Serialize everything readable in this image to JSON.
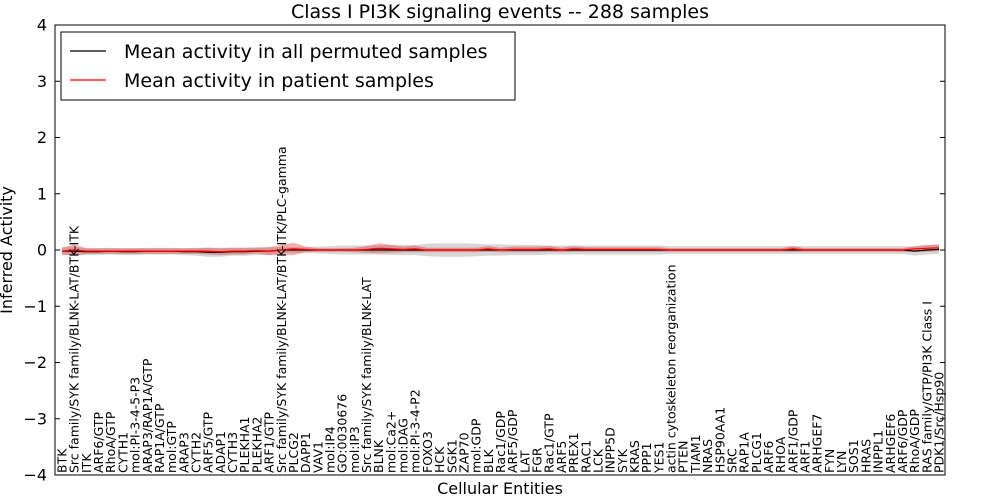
{
  "chart_data": {
    "type": "line",
    "title": "Class I PI3K signaling events -- 288 samples",
    "xlabel": "Cellular Entities",
    "ylabel": "Inferred Activity",
    "ylim": [
      -4,
      4
    ],
    "yticks": [
      {
        "value": 4,
        "label": "4"
      },
      {
        "value": 3,
        "label": "3"
      },
      {
        "value": 2,
        "label": "2"
      },
      {
        "value": 1,
        "label": "1"
      },
      {
        "value": 0,
        "label": "0"
      },
      {
        "value": -1,
        "label": "−1"
      },
      {
        "value": -2,
        "label": "−2"
      },
      {
        "value": -3,
        "label": "−3"
      },
      {
        "value": -4,
        "label": "−4"
      }
    ],
    "legend": {
      "position": "top-left",
      "entries": [
        {
          "label": "Mean activity in all permuted samples",
          "color": "#000000"
        },
        {
          "label": "Mean activity in patient samples",
          "color": "#ff0000"
        }
      ]
    },
    "categories": [
      "BTK",
      "Src family/SYK family/BLNK-LAT/BTK-ITK",
      "ITK",
      "ARF6/GTP",
      "RhoA/GTP",
      "CYTH1",
      "mol:PI-3-4-5-P3",
      "ARAP3/RAP1A/GTP",
      "RAP1A/GTP",
      "mol:GTP",
      "ARAP3",
      "CYTH2",
      "ARF5/GTP",
      "ADAP1",
      "CYTH3",
      "PLEKHA1",
      "PLEKHA2",
      "ARF1/GTP",
      "Src family/SYK family/BLNK-LAT/BTK-ITK/PLC-gamma",
      "PLCG2",
      "DAPP1",
      "VAV1",
      "mol:IP4",
      "GO:0030676",
      "mol:IP3",
      "Src family/SYK family/BLNK-LAT",
      "BLNK",
      "mol:Ca2+",
      "mol:DAG",
      "mol:PI-3-4-P2",
      "FOXO3",
      "HCK",
      "SGK1",
      "ZAP70",
      "mol:GDP",
      "BLK",
      "Rac1/GDP",
      "ARF5/GDP",
      "LAT",
      "FGR",
      "Rac1/GTP",
      "ARF5",
      "PREX1",
      "RAC1",
      "LCK",
      "INPP5D",
      "SYK",
      "KRAS",
      "PPP1",
      "YES1",
      "actin cytoskeleton reorganization",
      "PTEN",
      "TIAM1",
      "NRAS",
      "HSP90AA1",
      "SRC",
      "RAP1A",
      "PLCG1",
      "ARF6",
      "RHOA",
      "ARF1/GDP",
      "ARF1",
      "ARHGEF7",
      "FYN",
      "LYN",
      "SOS1",
      "HRAS",
      "INPPL1",
      "ARHGEF6",
      "ARF6/GDP",
      "RhoA/GDP",
      "RAS family/GTP/PI3K Class I",
      "PDK1/Src/Hsp90"
    ],
    "series": [
      {
        "name": "Mean activity in all permuted samples",
        "color": "#000000",
        "values": [
          -0.02,
          -0.02,
          -0.03,
          -0.03,
          -0.02,
          -0.03,
          -0.03,
          -0.02,
          -0.02,
          -0.02,
          -0.03,
          -0.03,
          -0.04,
          -0.04,
          -0.03,
          -0.03,
          -0.02,
          -0.02,
          0.0,
          0.0,
          0.0,
          0.0,
          0.0,
          0.0,
          0.0,
          0.0,
          0.0,
          0.0,
          0.0,
          0.0,
          0.0,
          0.0,
          0.0,
          0.0,
          0.0,
          0.0,
          0.0,
          0.0,
          0.0,
          0.0,
          0.0,
          0.0,
          0.0,
          0.0,
          0.0,
          0.0,
          0.0,
          0.0,
          0.0,
          0.0,
          0.0,
          0.0,
          0.0,
          0.0,
          0.0,
          0.0,
          0.0,
          0.0,
          0.0,
          0.0,
          0.0,
          0.0,
          0.0,
          0.0,
          0.0,
          0.0,
          0.0,
          0.0,
          0.0,
          0.0,
          -0.02,
          0.0,
          0.01
        ],
        "band": [
          0.07,
          0.07,
          0.06,
          0.06,
          0.06,
          0.06,
          0.06,
          0.06,
          0.06,
          0.06,
          0.06,
          0.07,
          0.08,
          0.08,
          0.07,
          0.07,
          0.07,
          0.07,
          0.05,
          0.05,
          0.05,
          0.06,
          0.07,
          0.08,
          0.08,
          0.08,
          0.08,
          0.09,
          0.09,
          0.09,
          0.11,
          0.12,
          0.12,
          0.12,
          0.11,
          0.1,
          0.1,
          0.09,
          0.09,
          0.09,
          0.08,
          0.08,
          0.08,
          0.08,
          0.08,
          0.08,
          0.08,
          0.08,
          0.08,
          0.08,
          0.07,
          0.07,
          0.07,
          0.07,
          0.07,
          0.07,
          0.07,
          0.07,
          0.07,
          0.07,
          0.07,
          0.07,
          0.07,
          0.07,
          0.07,
          0.07,
          0.07,
          0.07,
          0.07,
          0.07,
          0.08,
          0.08,
          0.08
        ]
      },
      {
        "name": "Mean activity in patient samples",
        "color": "#ff0000",
        "values": [
          -0.02,
          0.0,
          -0.02,
          -0.02,
          -0.02,
          -0.02,
          -0.02,
          -0.02,
          -0.02,
          -0.02,
          -0.02,
          -0.02,
          -0.02,
          -0.03,
          -0.02,
          -0.02,
          -0.01,
          -0.02,
          0.0,
          0.02,
          0.01,
          0.0,
          0.0,
          0.0,
          0.0,
          0.01,
          0.03,
          0.02,
          0.01,
          0.02,
          0.0,
          0.0,
          0.0,
          0.0,
          0.0,
          0.02,
          0.0,
          0.01,
          0.01,
          0.01,
          0.02,
          0.0,
          0.02,
          0.01,
          0.01,
          0.01,
          0.01,
          0.01,
          0.01,
          0.01,
          0.0,
          0.0,
          0.0,
          0.0,
          0.0,
          0.0,
          0.0,
          0.0,
          0.0,
          0.0,
          0.02,
          0.0,
          0.0,
          0.0,
          0.0,
          0.0,
          0.0,
          0.0,
          0.0,
          0.0,
          0.02,
          0.03,
          0.04
        ],
        "band": [
          0.06,
          0.1,
          0.05,
          0.05,
          0.05,
          0.05,
          0.05,
          0.05,
          0.05,
          0.05,
          0.05,
          0.05,
          0.06,
          0.06,
          0.06,
          0.06,
          0.05,
          0.07,
          0.09,
          0.11,
          0.05,
          0.03,
          0.03,
          0.03,
          0.04,
          0.06,
          0.09,
          0.07,
          0.05,
          0.06,
          0.04,
          0.04,
          0.04,
          0.04,
          0.04,
          0.05,
          0.04,
          0.05,
          0.05,
          0.05,
          0.05,
          0.04,
          0.05,
          0.04,
          0.04,
          0.04,
          0.04,
          0.04,
          0.04,
          0.04,
          0.03,
          0.03,
          0.03,
          0.03,
          0.03,
          0.03,
          0.03,
          0.03,
          0.03,
          0.03,
          0.05,
          0.03,
          0.03,
          0.03,
          0.03,
          0.03,
          0.03,
          0.03,
          0.03,
          0.03,
          0.05,
          0.06,
          0.06
        ]
      }
    ]
  }
}
